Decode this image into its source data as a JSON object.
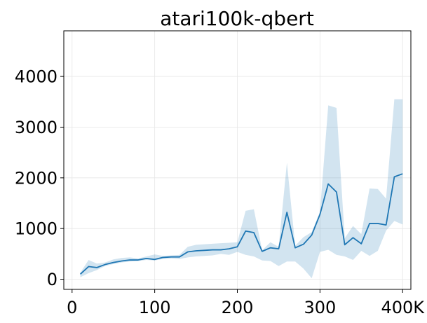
{
  "chart_data": {
    "type": "line",
    "title": "atari100k-qbert",
    "xlabel": "",
    "ylabel": "",
    "xlim": [
      -10000,
      410000
    ],
    "ylim": [
      -200,
      4900
    ],
    "grid": true,
    "legend": "none",
    "x_ticks": [
      {
        "value": 0,
        "label": "0"
      },
      {
        "value": 100000,
        "label": "100"
      },
      {
        "value": 200000,
        "label": "200"
      },
      {
        "value": 300000,
        "label": "300"
      },
      {
        "value": 400000,
        "label": "400K"
      }
    ],
    "y_ticks": [
      {
        "value": 0,
        "label": "0"
      },
      {
        "value": 1000,
        "label": "1000"
      },
      {
        "value": 2000,
        "label": "2000"
      },
      {
        "value": 3000,
        "label": "3000"
      },
      {
        "value": 4000,
        "label": "4000"
      }
    ],
    "colors": {
      "line": "#1f77b4",
      "band": "#1f77b4",
      "band_opacity": 0.2
    },
    "series": [
      {
        "x": [
          10000,
          20000,
          30000,
          40000,
          50000,
          60000,
          70000,
          80000,
          90000,
          100000,
          110000,
          120000,
          130000,
          140000,
          150000,
          160000,
          170000,
          180000,
          190000,
          200000,
          210000,
          220000,
          230000,
          240000,
          250000,
          260000,
          270000,
          280000,
          290000,
          300000,
          310000,
          320000,
          330000,
          340000,
          350000,
          360000,
          370000,
          380000,
          390000,
          400000
        ],
        "values": [
          100,
          250,
          230,
          290,
          330,
          360,
          380,
          380,
          410,
          390,
          430,
          440,
          440,
          540,
          560,
          570,
          580,
          580,
          600,
          640,
          950,
          920,
          550,
          620,
          600,
          1320,
          620,
          690,
          870,
          1280,
          1880,
          1720,
          680,
          820,
          700,
          1100,
          1100,
          1070,
          2020,
          2080
        ],
        "lower": [
          40,
          120,
          180,
          260,
          300,
          330,
          350,
          360,
          380,
          370,
          400,
          410,
          400,
          430,
          450,
          460,
          470,
          500,
          480,
          540,
          480,
          450,
          370,
          360,
          260,
          350,
          350,
          210,
          20,
          540,
          580,
          480,
          450,
          380,
          560,
          460,
          560,
          960,
          1150,
          1080
        ],
        "upper": [
          130,
          380,
          310,
          330,
          390,
          420,
          430,
          410,
          450,
          490,
          460,
          470,
          480,
          640,
          680,
          690,
          700,
          710,
          720,
          730,
          1350,
          1380,
          570,
          730,
          640,
          2300,
          660,
          830,
          930,
          1330,
          3430,
          3380,
          810,
          1050,
          890,
          1790,
          1780,
          1590,
          3550,
          3550
        ]
      }
    ]
  }
}
